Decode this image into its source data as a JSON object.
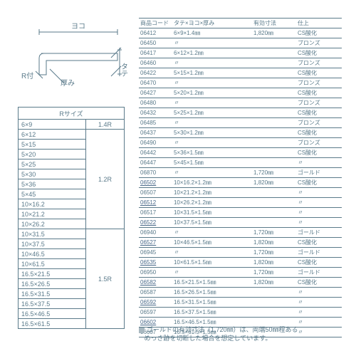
{
  "diagram": {
    "labels": {
      "yoko": "ヨコ",
      "tate": "タテ",
      "r": "R付",
      "thick": "厚み"
    },
    "stroke": "#5a7a8a"
  },
  "rtable": {
    "headers": [
      "Rサイズ",
      ""
    ],
    "groups": [
      {
        "r": "1.4R",
        "sizes": [
          "6×9"
        ]
      },
      {
        "r": "1.2R",
        "sizes": [
          "6×12",
          "5×15",
          "5×20",
          "5×25",
          "5×30",
          "5×36",
          "5×45",
          "10×16.2",
          "10×21.2",
          "10×26.2"
        ]
      },
      {
        "r": "1.5R",
        "sizes": [
          "10×31.5",
          "10×37.5",
          "10×46.5",
          "10×61.5",
          "16.5×21.5",
          "16.5×26.5",
          "16.5×31.5",
          "16.5×37.5",
          "16.5×46.5",
          "16.5×61.5"
        ]
      }
    ]
  },
  "maintable": {
    "headers": [
      "商品コード",
      "タテ×ヨコ×厚み",
      "有効寸法",
      "仕上"
    ],
    "rows": [
      [
        "06412",
        "6×9×1.4㎜",
        "1,820㎜",
        "CS酸化",
        false
      ],
      [
        "06450",
        "〃",
        "",
        "ブロンズ",
        false
      ],
      [
        "06417",
        "6×12×1.2㎜",
        "",
        "CS酸化",
        false
      ],
      [
        "06460",
        "〃",
        "",
        "ブロンズ",
        false
      ],
      [
        "06422",
        "5×15×1.2㎜",
        "",
        "CS酸化",
        false
      ],
      [
        "06470",
        "〃",
        "",
        "ブロンズ",
        false
      ],
      [
        "06427",
        "5×20×1.2㎜",
        "",
        "CS酸化",
        false
      ],
      [
        "06480",
        "〃",
        "",
        "ブロンズ",
        false
      ],
      [
        "06432",
        "5×25×1.2㎜",
        "",
        "CS酸化",
        false
      ],
      [
        "06485",
        "〃",
        "",
        "ブロンズ",
        false
      ],
      [
        "06437",
        "5×30×1.2㎜",
        "",
        "CS酸化",
        false
      ],
      [
        "06490",
        "〃",
        "",
        "ブロンズ",
        false
      ],
      [
        "06442",
        "5×36×1.5㎜",
        "",
        "CS酸化",
        false
      ],
      [
        "06447",
        "5×45×1.5㎜",
        "",
        "〃",
        false
      ],
      [
        "06870",
        "〃",
        "1,720㎜",
        "ゴールド",
        false
      ],
      [
        "06502",
        "10×16.2×1.2㎜",
        "1,820㎜",
        "CS酸化",
        true
      ],
      [
        "06507",
        "10×21.2×1.2㎜",
        "",
        "〃",
        false
      ],
      [
        "06512",
        "10×26.2×1.2㎜",
        "",
        "〃",
        true
      ],
      [
        "06517",
        "10×31.5×1.5㎜",
        "",
        "〃",
        false
      ],
      [
        "06522",
        "10×37.5×1.5㎜",
        "",
        "〃",
        true
      ],
      [
        "06940",
        "〃",
        "1,720㎜",
        "ゴールド",
        false
      ],
      [
        "06527",
        "10×46.5×1.5㎜",
        "1,820㎜",
        "CS酸化",
        true
      ],
      [
        "06945",
        "〃",
        "1,720㎜",
        "ゴールド",
        false
      ],
      [
        "06535",
        "10×61.5×1.5㎜",
        "1,820㎜",
        "CS酸化",
        true
      ],
      [
        "06950",
        "〃",
        "1,720㎜",
        "ゴールド",
        false
      ],
      [
        "06582",
        "16.5×21.5×1.5㎜",
        "1,820㎜",
        "CS酸化",
        true
      ],
      [
        "06587",
        "16.5×26.5×1.5㎜",
        "",
        "〃",
        false
      ],
      [
        "06592",
        "16.5×31.5×1.5㎜",
        "",
        "〃",
        true
      ],
      [
        "06597",
        "16.5×37.5×1.5㎜",
        "",
        "〃",
        false
      ],
      [
        "06602",
        "16.5×46.5×1.5㎜",
        "",
        "〃",
        true
      ],
      [
        "06607",
        "16.5×61.5×1.5㎜",
        "",
        "〃",
        false
      ]
    ]
  },
  "footnote": {
    "l1": "ゴールドの有効寸法（1,720㎜）は、両端50㎜程ある",
    "l2": "めっき跡を切断した場合を想定しています。"
  }
}
